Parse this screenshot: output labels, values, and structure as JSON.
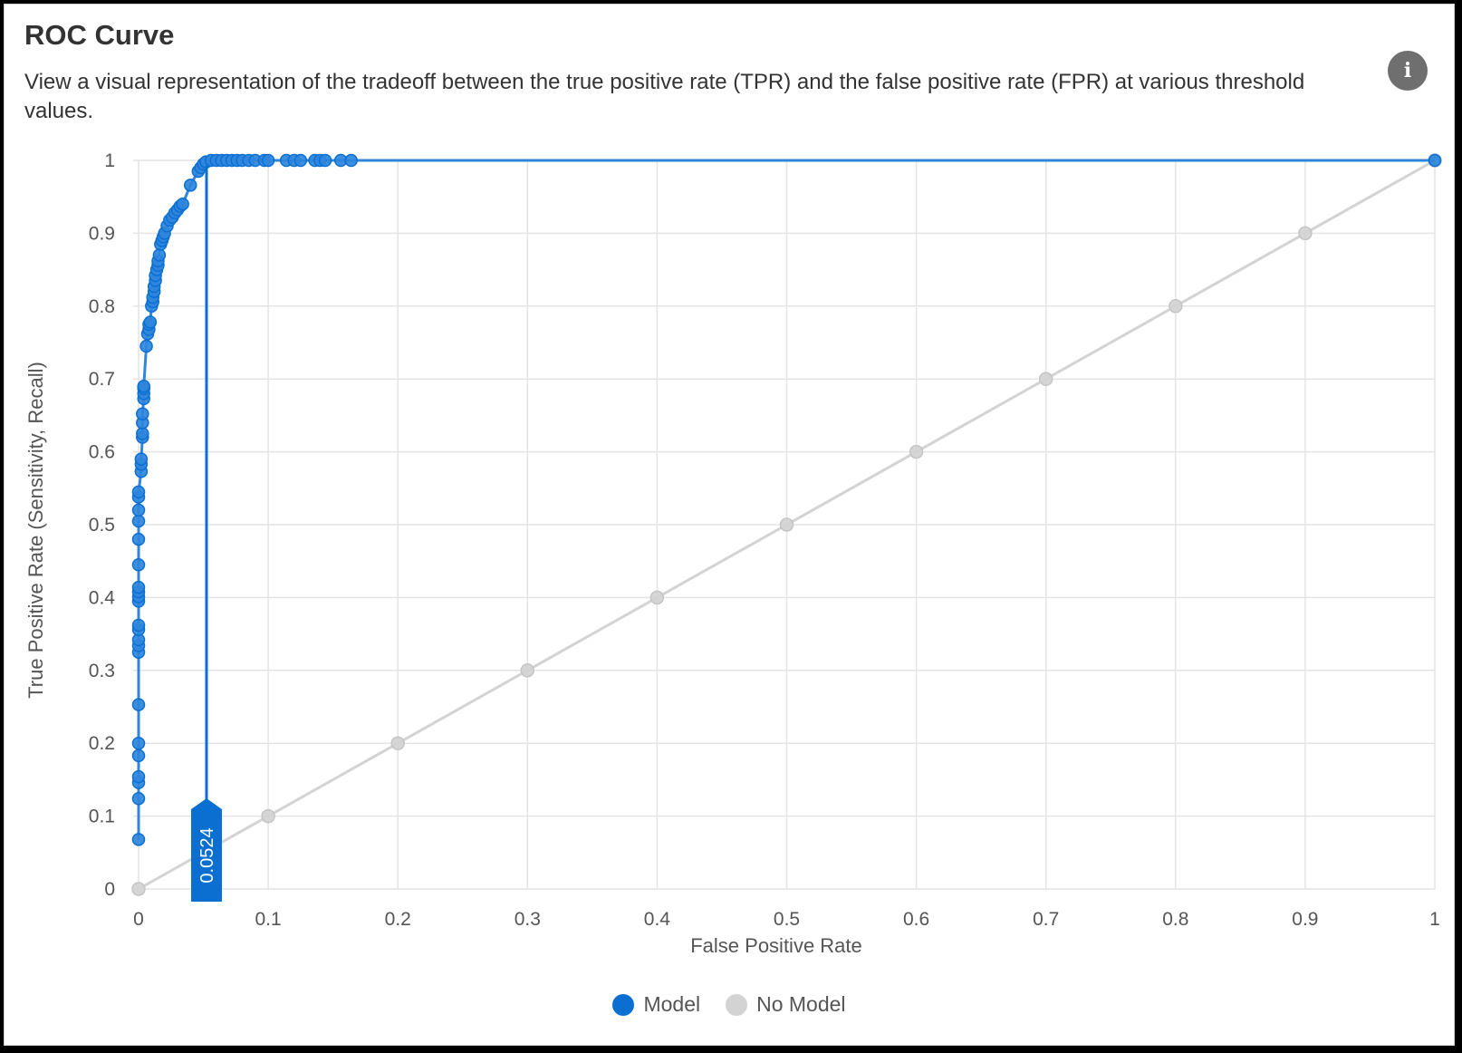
{
  "card": {
    "title": "ROC Curve",
    "description": "View a visual representation of the tradeoff between the true positive rate (TPR) and the false positive rate (FPR) at various threshold values.",
    "info_icon": "info-icon",
    "info_glyph": "i"
  },
  "colors": {
    "model": "#0a6fd1",
    "model_fill": "#2f86dc",
    "no_model": "#d3d3d3",
    "grid": "#e4e4e4"
  },
  "chart_data": {
    "type": "line",
    "xlabel": "False Positive Rate",
    "ylabel": "True Positive Rate (Sensitivity, Recall)",
    "xlim": [
      0,
      1
    ],
    "ylim": [
      0,
      1
    ],
    "grid": true,
    "legend_position": "bottom-center",
    "x_ticks": [
      "0",
      "0.1",
      "0.2",
      "0.3",
      "0.4",
      "0.5",
      "0.6",
      "0.7",
      "0.8",
      "0.9",
      "1"
    ],
    "y_ticks": [
      "0",
      "0.1",
      "0.2",
      "0.3",
      "0.4",
      "0.5",
      "0.6",
      "0.7",
      "0.8",
      "0.9",
      "1"
    ],
    "threshold_marker": {
      "x": 0.0524,
      "label": "0.0524"
    },
    "series": [
      {
        "name": "Model",
        "points": [
          [
            0,
            0.068
          ],
          [
            0,
            0.124
          ],
          [
            0,
            0.146
          ],
          [
            0,
            0.154
          ],
          [
            0,
            0.183
          ],
          [
            0,
            0.2
          ],
          [
            0,
            0.253
          ],
          [
            0,
            0.325
          ],
          [
            0,
            0.334
          ],
          [
            0,
            0.342
          ],
          [
            0,
            0.356
          ],
          [
            0,
            0.362
          ],
          [
            0,
            0.395
          ],
          [
            0,
            0.401
          ],
          [
            0,
            0.408
          ],
          [
            0,
            0.414
          ],
          [
            0,
            0.445
          ],
          [
            0,
            0.48
          ],
          [
            0,
            0.505
          ],
          [
            0,
            0.52
          ],
          [
            0,
            0.538
          ],
          [
            0,
            0.545
          ],
          [
            0.002,
            0.573
          ],
          [
            0.002,
            0.583
          ],
          [
            0.002,
            0.59
          ],
          [
            0.003,
            0.62
          ],
          [
            0.003,
            0.625
          ],
          [
            0.003,
            0.64
          ],
          [
            0.003,
            0.652
          ],
          [
            0.004,
            0.673
          ],
          [
            0.004,
            0.68
          ],
          [
            0.004,
            0.687
          ],
          [
            0.004,
            0.69
          ],
          [
            0.006,
            0.745
          ],
          [
            0.007,
            0.762
          ],
          [
            0.008,
            0.768
          ],
          [
            0.008,
            0.775
          ],
          [
            0.009,
            0.778
          ],
          [
            0.01,
            0.8
          ],
          [
            0.011,
            0.806
          ],
          [
            0.011,
            0.812
          ],
          [
            0.012,
            0.82
          ],
          [
            0.012,
            0.827
          ],
          [
            0.013,
            0.835
          ],
          [
            0.013,
            0.842
          ],
          [
            0.014,
            0.85
          ],
          [
            0.015,
            0.856
          ],
          [
            0.015,
            0.862
          ],
          [
            0.016,
            0.87
          ],
          [
            0.017,
            0.885
          ],
          [
            0.018,
            0.89
          ],
          [
            0.019,
            0.895
          ],
          [
            0.02,
            0.9
          ],
          [
            0.022,
            0.91
          ],
          [
            0.024,
            0.918
          ],
          [
            0.026,
            0.922
          ],
          [
            0.028,
            0.928
          ],
          [
            0.03,
            0.932
          ],
          [
            0.032,
            0.937
          ],
          [
            0.034,
            0.94
          ],
          [
            0.04,
            0.966
          ],
          [
            0.046,
            0.985
          ],
          [
            0.048,
            0.99
          ],
          [
            0.05,
            0.995
          ],
          [
            0.052,
            0.998
          ],
          [
            0.056,
            1
          ],
          [
            0.06,
            1
          ],
          [
            0.064,
            1
          ],
          [
            0.068,
            1
          ],
          [
            0.072,
            1
          ],
          [
            0.076,
            1
          ],
          [
            0.08,
            1
          ],
          [
            0.085,
            1
          ],
          [
            0.09,
            1
          ],
          [
            0.097,
            1
          ],
          [
            0.1,
            1
          ],
          [
            0.114,
            1
          ],
          [
            0.12,
            1
          ],
          [
            0.125,
            1
          ],
          [
            0.136,
            1
          ],
          [
            0.14,
            1
          ],
          [
            0.144,
            1
          ],
          [
            0.156,
            1
          ],
          [
            0.164,
            1
          ],
          [
            1,
            1
          ]
        ]
      },
      {
        "name": "No Model",
        "points": [
          [
            0,
            0
          ],
          [
            0.1,
            0.1
          ],
          [
            0.2,
            0.2
          ],
          [
            0.3,
            0.3
          ],
          [
            0.4,
            0.4
          ],
          [
            0.5,
            0.5
          ],
          [
            0.6,
            0.6
          ],
          [
            0.7,
            0.7
          ],
          [
            0.8,
            0.8
          ],
          [
            0.9,
            0.9
          ],
          [
            1,
            1
          ]
        ]
      }
    ]
  }
}
